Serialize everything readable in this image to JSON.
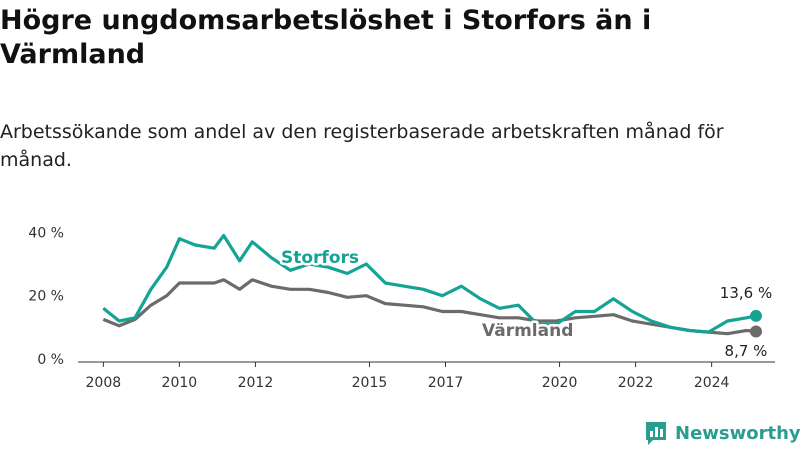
{
  "header": {
    "title": "Högre ungdomsarbetslöshet i Storfors än i Värmland",
    "subtitle": "Arbetssökande som andel av den registerbaserade arbetskraften månad för månad."
  },
  "brand": {
    "name": "Newsworthy",
    "icon": "newsworthy-logo-icon"
  },
  "colors": {
    "storfors": "#14a394",
    "varmland": "#6b6b6b",
    "axis": "#333333"
  },
  "chart_data": {
    "type": "line",
    "x_axis_type": "date",
    "xlim": [
      "2007-05",
      "2025-09"
    ],
    "ylim": [
      0,
      42
    ],
    "y_ticks": [
      0,
      20,
      40
    ],
    "y_tick_labels": [
      "0 %",
      "20 %",
      "40 %"
    ],
    "x_ticks": [
      2008,
      2010,
      2012,
      2015,
      2017,
      2020,
      2022,
      2024
    ],
    "x_tick_labels": [
      "2008",
      "2010",
      "2012",
      "2015",
      "2017",
      "2020",
      "2022",
      "2024"
    ],
    "grid": false,
    "series": [
      {
        "name": "Storfors",
        "color": "#14a394",
        "end_label": "13,6 %",
        "points": [
          [
            "2008-01",
            16
          ],
          [
            "2008-06",
            12
          ],
          [
            "2008-11",
            13
          ],
          [
            "2009-04",
            22
          ],
          [
            "2009-09",
            29
          ],
          [
            "2010-01",
            38
          ],
          [
            "2010-06",
            36
          ],
          [
            "2010-12",
            35
          ],
          [
            "2011-03",
            39
          ],
          [
            "2011-08",
            31
          ],
          [
            "2011-12",
            37
          ],
          [
            "2012-06",
            32
          ],
          [
            "2012-12",
            28
          ],
          [
            "2013-06",
            30
          ],
          [
            "2013-12",
            29
          ],
          [
            "2014-06",
            27
          ],
          [
            "2014-12",
            30
          ],
          [
            "2015-06",
            24
          ],
          [
            "2015-12",
            23
          ],
          [
            "2016-06",
            22
          ],
          [
            "2016-12",
            20
          ],
          [
            "2017-06",
            23
          ],
          [
            "2017-12",
            19
          ],
          [
            "2018-06",
            16
          ],
          [
            "2018-12",
            17
          ],
          [
            "2019-06",
            11
          ],
          [
            "2019-12",
            11
          ],
          [
            "2020-06",
            15
          ],
          [
            "2020-12",
            15
          ],
          [
            "2021-06",
            19
          ],
          [
            "2021-12",
            15
          ],
          [
            "2022-06",
            12
          ],
          [
            "2022-12",
            10
          ],
          [
            "2023-06",
            9
          ],
          [
            "2023-12",
            8.5
          ],
          [
            "2024-06",
            12
          ],
          [
            "2024-12",
            13
          ],
          [
            "2025-03",
            13.6
          ]
        ]
      },
      {
        "name": "Värmland",
        "color": "#6b6b6b",
        "end_label": "8,7 %",
        "points": [
          [
            "2008-01",
            12.5
          ],
          [
            "2008-06",
            10.5
          ],
          [
            "2008-11",
            12.5
          ],
          [
            "2009-04",
            17
          ],
          [
            "2009-09",
            20
          ],
          [
            "2010-01",
            24
          ],
          [
            "2010-06",
            24
          ],
          [
            "2010-12",
            24
          ],
          [
            "2011-03",
            25
          ],
          [
            "2011-08",
            22
          ],
          [
            "2011-12",
            25
          ],
          [
            "2012-06",
            23
          ],
          [
            "2012-12",
            22
          ],
          [
            "2013-06",
            22
          ],
          [
            "2013-12",
            21
          ],
          [
            "2014-06",
            19.5
          ],
          [
            "2014-12",
            20
          ],
          [
            "2015-06",
            17.5
          ],
          [
            "2015-12",
            17
          ],
          [
            "2016-06",
            16.5
          ],
          [
            "2016-12",
            15
          ],
          [
            "2017-06",
            15
          ],
          [
            "2017-12",
            14
          ],
          [
            "2018-06",
            13
          ],
          [
            "2018-12",
            13
          ],
          [
            "2019-06",
            12
          ],
          [
            "2019-12",
            12
          ],
          [
            "2020-06",
            13
          ],
          [
            "2020-12",
            13.5
          ],
          [
            "2021-06",
            14
          ],
          [
            "2021-12",
            12
          ],
          [
            "2022-06",
            11
          ],
          [
            "2022-12",
            10
          ],
          [
            "2023-06",
            9
          ],
          [
            "2023-12",
            8.5
          ],
          [
            "2024-06",
            8
          ],
          [
            "2024-12",
            9
          ],
          [
            "2025-03",
            8.7
          ]
        ]
      }
    ]
  }
}
